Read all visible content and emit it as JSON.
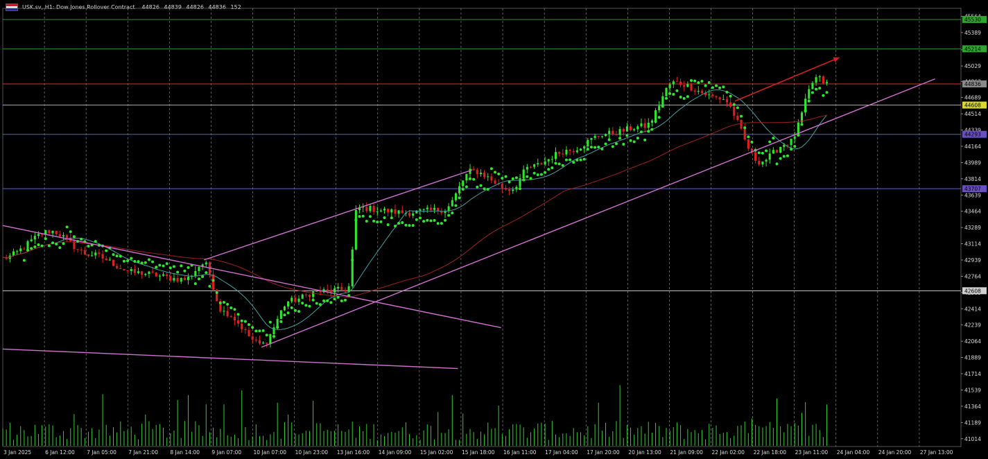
{
  "header": {
    "symbol": "USK.sv, H1:  Dow Jones Rollover Contract",
    "open": "44826",
    "high": "44839",
    "low": "44826",
    "close": "44836",
    "volume": "152"
  },
  "chart_data": {
    "type": "candlestick",
    "title": "USK.sv, H1: Dow Jones Rollover Contract",
    "grid": true,
    "ylim": [
      40930,
      45650
    ],
    "y_ticks": [
      45564,
      45389,
      45203,
      45029,
      44863,
      44689,
      44514,
      44339,
      44164,
      43989,
      43814,
      43639,
      43464,
      43289,
      43114,
      42939,
      42764,
      42589,
      42414,
      42239,
      42064,
      41889,
      41714,
      41539,
      41364,
      41189,
      41014
    ],
    "x_ticks": [
      "3 Jan 2025",
      "6 Jan 12:00",
      "7 Jan 05:00",
      "7 Jan 21:00",
      "8 Jan 14:00",
      "9 Jan 07:00",
      "10 Jan 07:00",
      "10 Jan 23:00",
      "13 Jan 16:00",
      "14 Jan 09:00",
      "15 Jan 02:00",
      "15 Jan 18:00",
      "16 Jan 11:00",
      "17 Jan 04:00",
      "17 Jan 20:00",
      "20 Jan 13:00",
      "21 Jan 09:00",
      "22 Jan 02:00",
      "22 Jan 18:00",
      "23 Jan 11:00",
      "24 Jan 04:00",
      "24 Jan 20:00",
      "27 Jan 13:00"
    ],
    "key_points": [
      {
        "pos": 0.0,
        "price": 42960
      },
      {
        "pos": 0.05,
        "price": 43250
      },
      {
        "pos": 0.09,
        "price": 43000
      },
      {
        "pos": 0.14,
        "price": 42800
      },
      {
        "pos": 0.19,
        "price": 42730
      },
      {
        "pos": 0.21,
        "price": 42900
      },
      {
        "pos": 0.23,
        "price": 42380
      },
      {
        "pos": 0.27,
        "price": 42030
      },
      {
        "pos": 0.3,
        "price": 42500
      },
      {
        "pos": 0.33,
        "price": 42600
      },
      {
        "pos": 0.36,
        "price": 42620
      },
      {
        "pos": 0.37,
        "price": 43500
      },
      {
        "pos": 0.42,
        "price": 43450
      },
      {
        "pos": 0.46,
        "price": 43480
      },
      {
        "pos": 0.49,
        "price": 43900
      },
      {
        "pos": 0.53,
        "price": 43700
      },
      {
        "pos": 0.55,
        "price": 43940
      },
      {
        "pos": 0.59,
        "price": 44120
      },
      {
        "pos": 0.63,
        "price": 44300
      },
      {
        "pos": 0.67,
        "price": 44380
      },
      {
        "pos": 0.7,
        "price": 44850
      },
      {
        "pos": 0.75,
        "price": 44680
      },
      {
        "pos": 0.79,
        "price": 44000
      },
      {
        "pos": 0.82,
        "price": 44200
      },
      {
        "pos": 0.85,
        "price": 44900
      },
      {
        "pos": 0.86,
        "price": 44836
      }
    ],
    "horizontal_levels": [
      {
        "price": 45530,
        "label": "45530",
        "color": "#2e8b2e",
        "label_bg": "#2fa52f"
      },
      {
        "price": 45214,
        "label": "45214",
        "color": "#2e8b2e",
        "label_bg": "#2fa52f"
      },
      {
        "price": 44836,
        "label": "44836",
        "color": "#cc3333",
        "label_bg": "#8a8a8a"
      },
      {
        "price": 44608,
        "label": "44608",
        "color": "#b8b840",
        "label_bg": "#d8d830"
      },
      {
        "price": 44293,
        "label": "44293",
        "color": "#6060c0",
        "label_bg": "#6a4fc0"
      },
      {
        "price": 43707,
        "label": "43707",
        "color": "#6060c0",
        "label_bg": "#6a4fc0"
      },
      {
        "price": 42608,
        "label": "42608",
        "color": "#cccccc",
        "label_bg": "#d0d0d0"
      }
    ],
    "trend_lines": [
      {
        "from": {
          "pos": 0.0,
          "price": 43310
        },
        "to": {
          "pos": 0.52,
          "price": 42210
        },
        "color": "#d070d0"
      },
      {
        "from": {
          "pos": 0.0,
          "price": 41980
        },
        "to": {
          "pos": 0.475,
          "price": 41770
        },
        "color": "#d070d0"
      },
      {
        "from": {
          "pos": 0.21,
          "price": 42940
        },
        "to": {
          "pos": 0.49,
          "price": 43910
        },
        "color": "#d070d0"
      },
      {
        "from": {
          "pos": 0.27,
          "price": 42000
        },
        "to": {
          "pos": 0.973,
          "price": 44890
        },
        "color": "#d070d0"
      }
    ],
    "forecast_arrow": {
      "from": {
        "pos": 0.764,
        "price": 44650
      },
      "to": {
        "pos": 0.873,
        "price": 45120
      },
      "color": "#d02020"
    },
    "moving_averages": [
      {
        "name": "",
        "color": "#44a0a0"
      },
      {
        "name": "",
        "color": "#a02020"
      }
    ]
  }
}
